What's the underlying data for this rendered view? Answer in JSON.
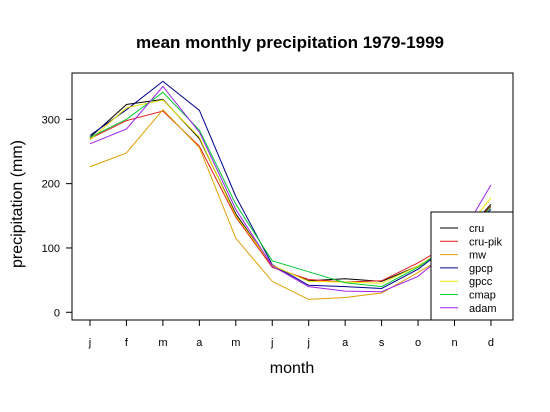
{
  "chart_data": {
    "type": "line",
    "title": "mean monthly precipitation 1979-1999",
    "xlabel": "month",
    "ylabel": "precipitation (mm)",
    "categories": [
      "j",
      "f",
      "m",
      "a",
      "m",
      "j",
      "j",
      "a",
      "s",
      "o",
      "n",
      "d"
    ],
    "ylim": [
      -12,
      372
    ],
    "yticks": [
      0,
      100,
      200,
      300
    ],
    "grid": false,
    "legend_position": "bottom-right",
    "series": [
      {
        "name": "cru",
        "color": "#000000",
        "values": [
          272,
          323,
          331,
          270,
          153,
          72,
          49,
          52,
          48,
          72,
          105,
          168
        ]
      },
      {
        "name": "cru-pik",
        "color": "#e41a1c",
        "values": [
          270,
          298,
          313,
          258,
          148,
          70,
          51,
          47,
          49,
          77,
          110,
          165
        ]
      },
      {
        "name": "mw",
        "color": "#e0a000",
        "values": [
          226,
          248,
          315,
          256,
          115,
          48,
          20,
          23,
          30,
          62,
          95,
          155
        ]
      },
      {
        "name": "gpcp",
        "color": "#00008b",
        "values": [
          275,
          315,
          359,
          314,
          180,
          74,
          42,
          40,
          37,
          67,
          110,
          160
        ]
      },
      {
        "name": "gpcc",
        "color": "#e6e600",
        "values": [
          268,
          318,
          330,
          272,
          150,
          73,
          48,
          47,
          45,
          72,
          108,
          178
        ]
      },
      {
        "name": "cmap",
        "color": "#00cc33",
        "values": [
          272,
          300,
          342,
          283,
          168,
          80,
          63,
          46,
          40,
          70,
          110,
          163
        ]
      },
      {
        "name": "adam",
        "color": "#a020f0",
        "values": [
          262,
          285,
          351,
          280,
          160,
          72,
          40,
          33,
          32,
          56,
          102,
          198
        ]
      }
    ]
  }
}
